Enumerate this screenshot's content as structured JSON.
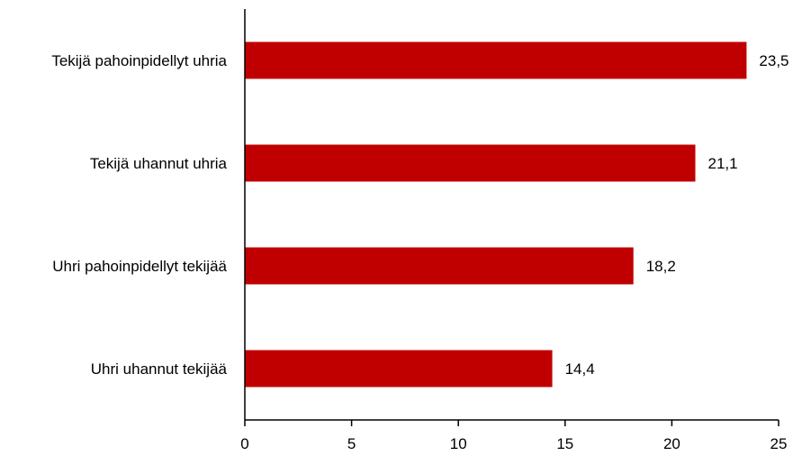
{
  "chart_data": {
    "type": "bar",
    "orientation": "horizontal",
    "title": "",
    "xlabel": "",
    "ylabel": "",
    "categories": [
      "Tekijä pahoinpidellyt uhria",
      "Tekijä uhannut uhria",
      "Uhri pahoinpidellyt tekijää",
      "Uhri uhannut tekijää"
    ],
    "values": [
      23.5,
      21.1,
      18.2,
      14.4
    ],
    "value_labels": [
      "23,5",
      "21,1",
      "18,2",
      "14,4"
    ],
    "xlim": [
      0,
      25
    ],
    "x_ticks": [
      0,
      5,
      10,
      15,
      20,
      25
    ],
    "x_tick_labels": [
      "0",
      "5",
      "10",
      "15",
      "20",
      "25"
    ],
    "grid": false,
    "legend": "none",
    "bar_color": "#c00000"
  }
}
